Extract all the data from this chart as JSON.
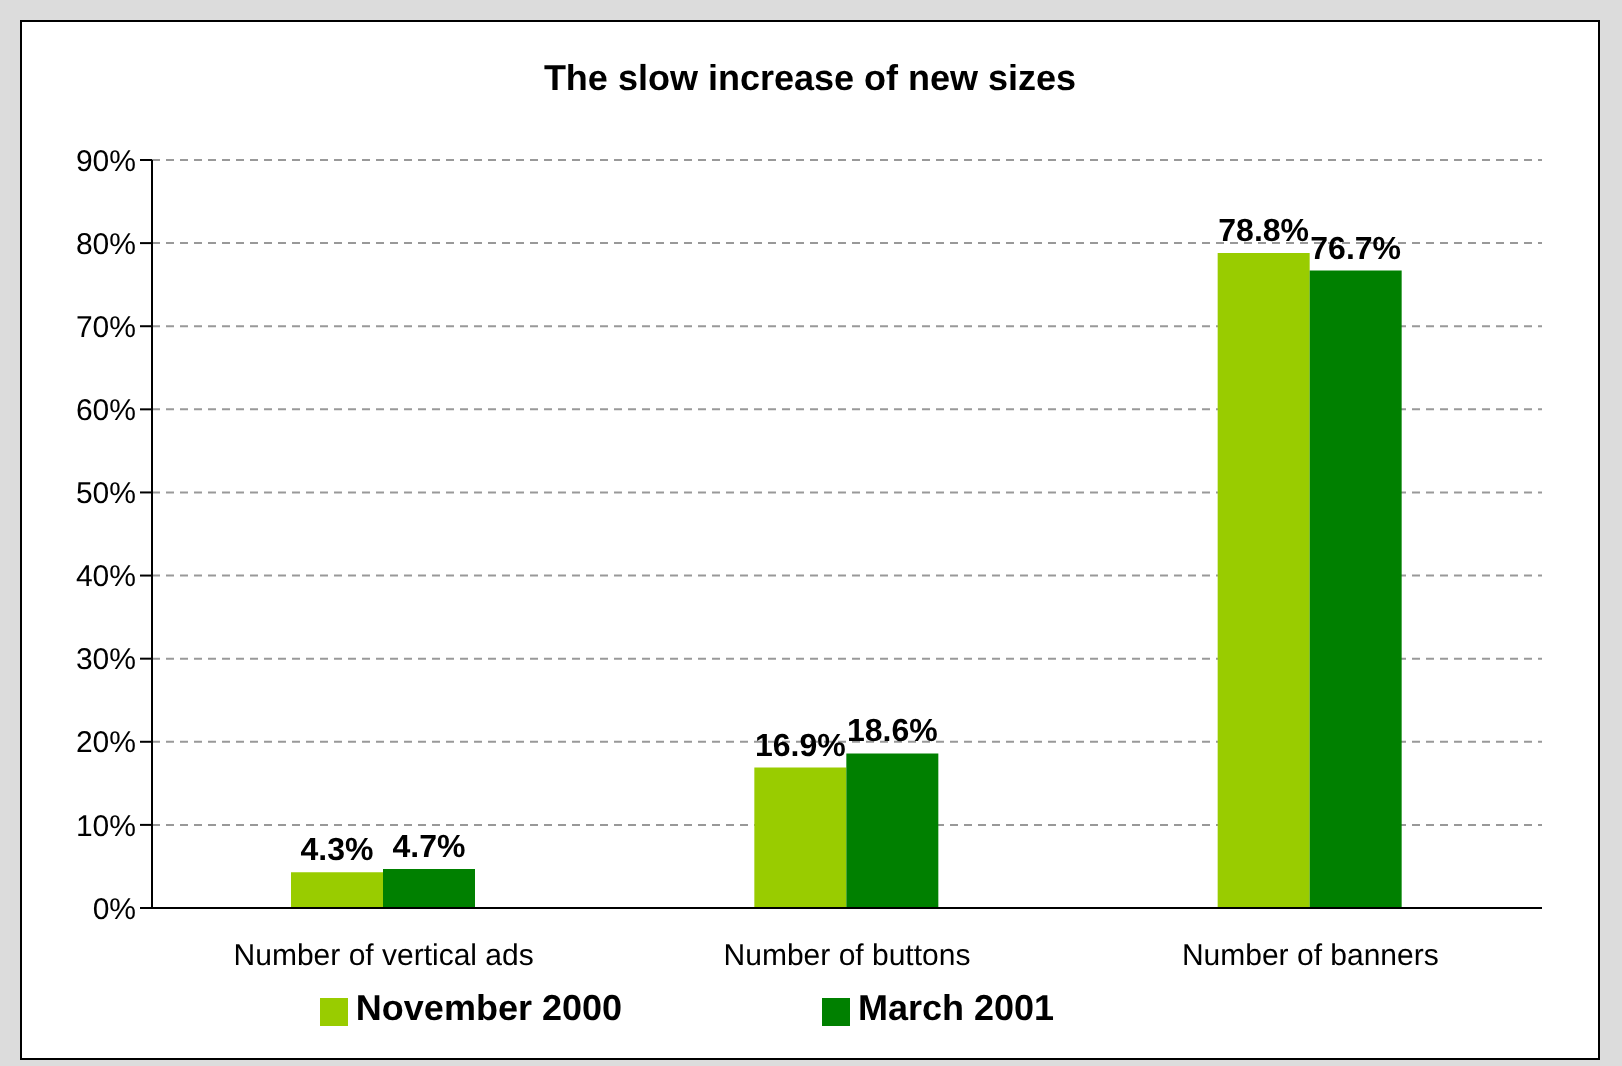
{
  "chart_data": {
    "type": "bar",
    "title": "The slow increase of new sizes",
    "categories": [
      "Number of vertical ads",
      "Number of buttons",
      "Number of  banners"
    ],
    "series": [
      {
        "name": "November 2000",
        "color": "#99cc00",
        "values": [
          4.3,
          16.9,
          78.8
        ],
        "value_labels": [
          "4.3%",
          "16.9%",
          "78.8%"
        ]
      },
      {
        "name": "March 2001",
        "color": "#008000",
        "values": [
          4.7,
          18.6,
          76.7
        ],
        "value_labels": [
          "4.7%",
          "18.6%",
          "76.7%"
        ]
      }
    ],
    "ylim": [
      0,
      90
    ],
    "yticks": [
      {
        "value": 0,
        "label": "0%"
      },
      {
        "value": 10,
        "label": "10%"
      },
      {
        "value": 20,
        "label": "20%"
      },
      {
        "value": 30,
        "label": "30%"
      },
      {
        "value": 40,
        "label": "40%"
      },
      {
        "value": 50,
        "label": "50%"
      },
      {
        "value": 60,
        "label": "60%"
      },
      {
        "value": 70,
        "label": "70%"
      },
      {
        "value": 80,
        "label": "80%"
      },
      {
        "value": 90,
        "label": "90%"
      }
    ],
    "grid": "y",
    "legend": "bottom"
  }
}
